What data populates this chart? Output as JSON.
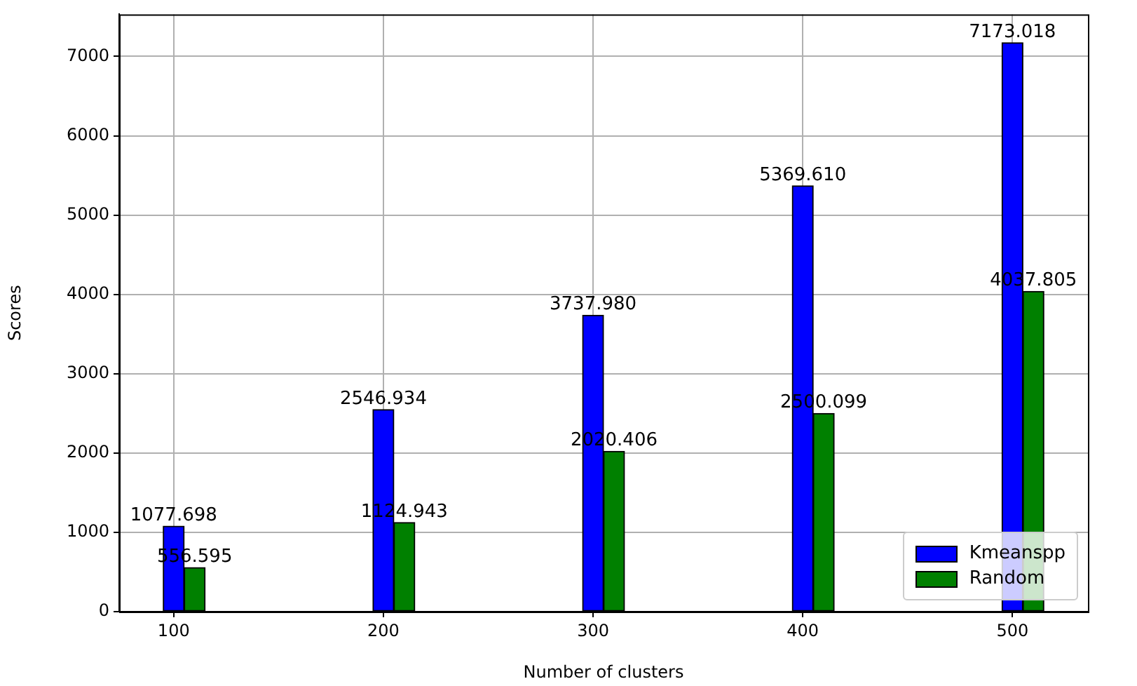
{
  "chart_data": {
    "type": "bar",
    "xlabel": "Number of clusters",
    "ylabel": "Scores",
    "series": [
      {
        "name": "Kmeanspp",
        "color": "#0000ff",
        "x": [
          100,
          200,
          300,
          400,
          500
        ],
        "values": [
          1077.698,
          2546.934,
          3737.98,
          5369.61,
          7173.018
        ],
        "value_labels": [
          "1077.698",
          "2546.934",
          "3737.980",
          "5369.610",
          "7173.018"
        ]
      },
      {
        "name": "Random",
        "color": "#008000",
        "x": [
          110,
          210,
          310,
          410,
          510
        ],
        "values": [
          556.595,
          1124.943,
          2020.406,
          2500.099,
          4037.805
        ],
        "value_labels": [
          "556.595",
          "1124.943",
          "2020.406",
          "2500.099",
          "4037.805"
        ]
      }
    ],
    "xlim": [
      74,
      536
    ],
    "xticks": [
      100,
      200,
      300,
      400,
      500
    ],
    "ylim": [
      0,
      7531
    ],
    "yticks": [
      0,
      1000,
      2000,
      3000,
      4000,
      5000,
      6000,
      7000
    ],
    "grid": true,
    "legend": "bottom right"
  }
}
